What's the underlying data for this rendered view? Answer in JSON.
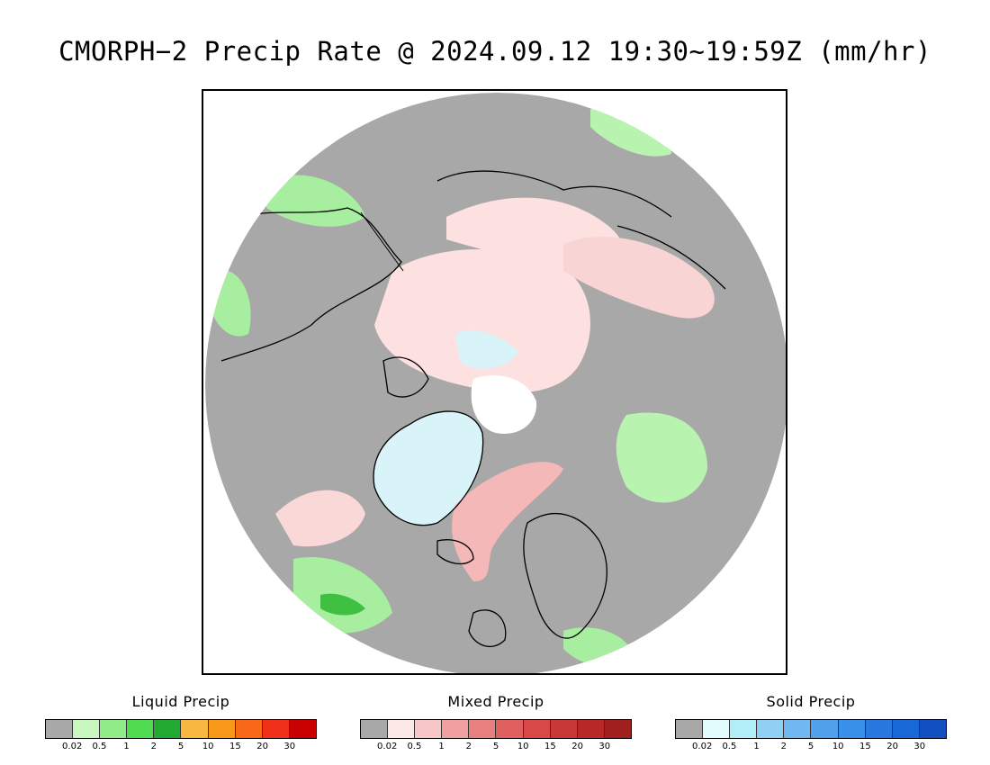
{
  "title": "CMORPH−2 Precip Rate @ 2024.09.12 19:30~19:59Z (mm/hr)",
  "map": {
    "projection": "polar stereographic, north pole",
    "colors": {
      "background_gray": "#a8a8a8",
      "ocean_white": "#ffffff",
      "coast_line": "#000000"
    }
  },
  "legends": [
    {
      "id": "liquid",
      "title": "Liquid Precip",
      "colors": [
        "#a8a8a8",
        "#c8f8c0",
        "#90ec88",
        "#50dc50",
        "#20aa30",
        "#f8b840",
        "#f89818",
        "#f86818",
        "#f03018",
        "#c80000"
      ],
      "ticks": [
        "0.02",
        "0.5",
        "1",
        "2",
        "5",
        "10",
        "15",
        "20",
        "30"
      ]
    },
    {
      "id": "mixed",
      "title": "Mixed Precip",
      "colors": [
        "#a8a8a8",
        "#fde8e8",
        "#f8c8c8",
        "#f0a0a0",
        "#e88080",
        "#e06060",
        "#d84848",
        "#c83838",
        "#b82828",
        "#a02020"
      ],
      "ticks": [
        "0.02",
        "0.5",
        "1",
        "2",
        "5",
        "10",
        "15",
        "20",
        "30"
      ]
    },
    {
      "id": "solid",
      "title": "Solid Precip",
      "colors": [
        "#a8a8a8",
        "#e0fcfc",
        "#b0eef8",
        "#90d0f4",
        "#70b8f0",
        "#50a0ec",
        "#3890e8",
        "#2878e0",
        "#1868d8",
        "#1050c0"
      ],
      "ticks": [
        "0.02",
        "0.5",
        "1",
        "2",
        "5",
        "10",
        "15",
        "20",
        "30"
      ]
    }
  ]
}
